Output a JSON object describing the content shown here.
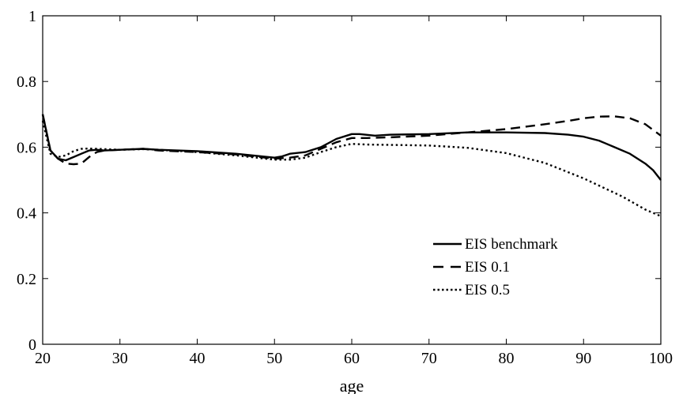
{
  "chart_data": {
    "type": "line",
    "title": "",
    "xlabel": "age",
    "ylabel": "",
    "xlim": [
      20,
      100
    ],
    "ylim": [
      0,
      1
    ],
    "xticks": [
      20,
      30,
      40,
      50,
      60,
      70,
      80,
      90,
      100
    ],
    "yticks": [
      0,
      0.2,
      0.4,
      0.6,
      0.8,
      1
    ],
    "xtick_labels": [
      "20",
      "30",
      "40",
      "50",
      "60",
      "70",
      "80",
      "90",
      "100"
    ],
    "ytick_labels": [
      "0",
      "0.2",
      "0.4",
      "0.6",
      "0.8",
      "1"
    ],
    "grid": false,
    "legend_position": "lower-right",
    "series": [
      {
        "name": "EIS benchmark",
        "style": "solid",
        "color": "#000000",
        "x": [
          20,
          21,
          22,
          23,
          24,
          25,
          26,
          27,
          28,
          30,
          33,
          35,
          40,
          45,
          50,
          51,
          52,
          54,
          56,
          58,
          60,
          61,
          63,
          65,
          70,
          75,
          80,
          85,
          88,
          90,
          92,
          94,
          96,
          98,
          99,
          100
        ],
        "y": [
          0.7,
          0.59,
          0.565,
          0.56,
          0.57,
          0.58,
          0.59,
          0.592,
          0.59,
          0.592,
          0.595,
          0.592,
          0.588,
          0.58,
          0.568,
          0.572,
          0.58,
          0.585,
          0.6,
          0.625,
          0.64,
          0.64,
          0.635,
          0.638,
          0.64,
          0.645,
          0.645,
          0.643,
          0.638,
          0.632,
          0.62,
          0.6,
          0.58,
          0.55,
          0.53,
          0.5
        ]
      },
      {
        "name": "EIS 0.1",
        "style": "dashed",
        "color": "#000000",
        "x": [
          20,
          21,
          22,
          23,
          24,
          25,
          26,
          27,
          28,
          30,
          33,
          35,
          40,
          45,
          50,
          52,
          54,
          56,
          58,
          60,
          62,
          65,
          70,
          75,
          80,
          85,
          88,
          90,
          92,
          94,
          96,
          98,
          100
        ],
        "y": [
          0.7,
          0.59,
          0.565,
          0.55,
          0.548,
          0.55,
          0.57,
          0.585,
          0.59,
          0.592,
          0.595,
          0.59,
          0.585,
          0.578,
          0.565,
          0.568,
          0.575,
          0.595,
          0.615,
          0.628,
          0.628,
          0.63,
          0.635,
          0.645,
          0.655,
          0.67,
          0.68,
          0.688,
          0.693,
          0.694,
          0.688,
          0.67,
          0.635
        ]
      },
      {
        "name": "EIS 0.5",
        "style": "dotted",
        "color": "#000000",
        "x": [
          20,
          21,
          22,
          23,
          24,
          25,
          26,
          28,
          30,
          33,
          35,
          40,
          45,
          50,
          52,
          54,
          56,
          58,
          60,
          62,
          65,
          70,
          75,
          80,
          85,
          90,
          95,
          98,
          100
        ],
        "y": [
          0.68,
          0.58,
          0.57,
          0.575,
          0.588,
          0.595,
          0.596,
          0.594,
          0.592,
          0.594,
          0.592,
          0.585,
          0.575,
          0.562,
          0.562,
          0.568,
          0.585,
          0.6,
          0.61,
          0.608,
          0.607,
          0.605,
          0.598,
          0.582,
          0.552,
          0.505,
          0.45,
          0.41,
          0.39
        ]
      }
    ]
  }
}
